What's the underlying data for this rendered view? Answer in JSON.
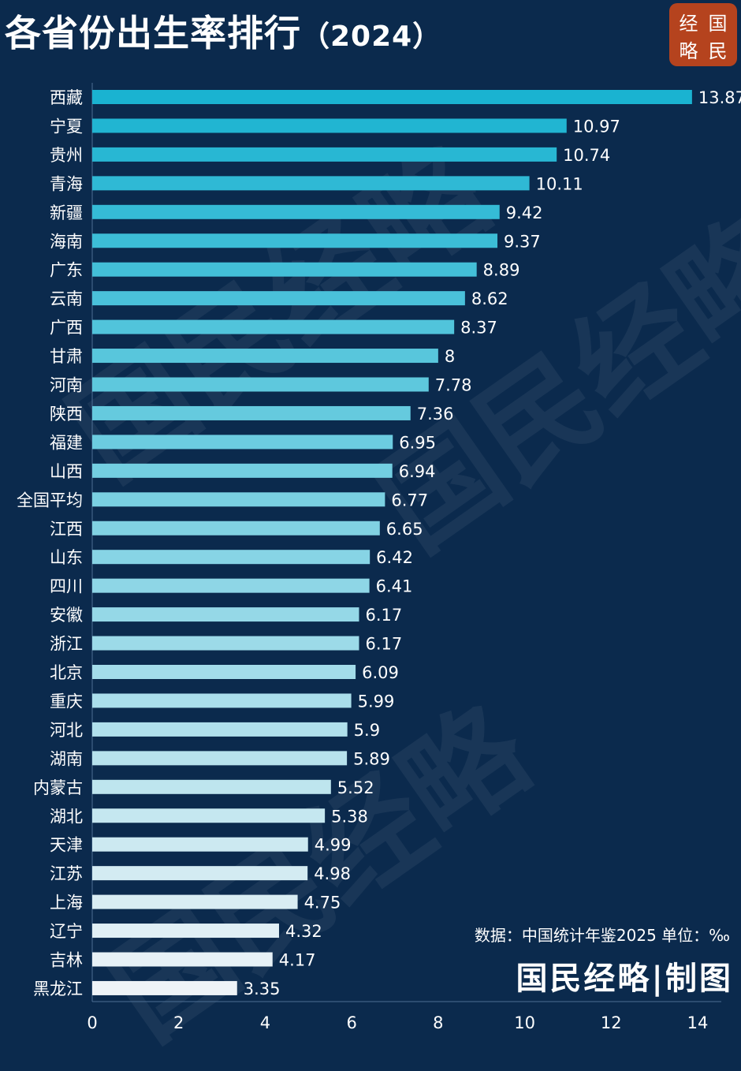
{
  "header": {
    "title": "各省份出生率排行",
    "year": "（2024）"
  },
  "logo": {
    "chars": [
      "经",
      "国",
      "略",
      "民"
    ]
  },
  "watermark": "国民经略",
  "footer": {
    "source": "数据：中国统计年鉴2025 单位：‰",
    "credit": "国民经略|制图"
  },
  "colors": {
    "background": "#0b2a4d",
    "bar_top": "#1ab3d1",
    "bar_bottom": "#eef3f7",
    "logo_bg": "#b5431e"
  },
  "chart_data": {
    "type": "bar",
    "orientation": "horizontal",
    "categories": [
      "西藏",
      "宁夏",
      "贵州",
      "青海",
      "新疆",
      "海南",
      "广东",
      "云南",
      "广西",
      "甘肃",
      "河南",
      "陕西",
      "福建",
      "山西",
      "全国平均",
      "江西",
      "山东",
      "四川",
      "安徽",
      "浙江",
      "北京",
      "重庆",
      "河北",
      "湖南",
      "内蒙古",
      "湖北",
      "天津",
      "江苏",
      "上海",
      "辽宁",
      "吉林",
      "黑龙江"
    ],
    "values": [
      13.87,
      10.97,
      10.74,
      10.11,
      9.42,
      9.37,
      8.89,
      8.62,
      8.37,
      8,
      7.78,
      7.36,
      6.95,
      6.94,
      6.77,
      6.65,
      6.42,
      6.41,
      6.17,
      6.17,
      6.09,
      5.99,
      5.9,
      5.89,
      5.52,
      5.38,
      4.99,
      4.98,
      4.75,
      4.32,
      4.17,
      3.35
    ],
    "value_labels": [
      "13.87",
      "10.97",
      "10.74",
      "10.11",
      "9.42",
      "9.37",
      "8.89",
      "8.62",
      "8.37",
      "8",
      "7.78",
      "7.36",
      "6.95",
      "6.94",
      "6.77",
      "6.65",
      "6.42",
      "6.41",
      "6.17",
      "6.17",
      "6.09",
      "5.99",
      "5.9",
      "5.89",
      "5.52",
      "5.38",
      "4.99",
      "4.98",
      "4.75",
      "4.32",
      "4.17",
      "3.35"
    ],
    "xlim": [
      0,
      14
    ],
    "xticks": [
      "0",
      "2",
      "4",
      "6",
      "8",
      "10",
      "12",
      "14"
    ],
    "grid": false,
    "legend": "none"
  }
}
